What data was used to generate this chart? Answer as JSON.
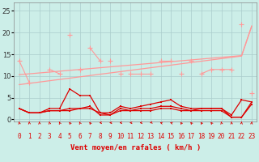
{
  "x": [
    0,
    1,
    2,
    3,
    4,
    5,
    6,
    7,
    8,
    9,
    10,
    11,
    12,
    13,
    14,
    15,
    16,
    17,
    18,
    19,
    20,
    21,
    22,
    23
  ],
  "background_color": "#cceee8",
  "grid_color": "#aacccc",
  "line_color_dark": "#dd0000",
  "line_color_light": "#ff9999",
  "xlabel": "Vent moyen/en rafales ( km/h )",
  "ylim": [
    -0.5,
    27
  ],
  "xlim": [
    -0.5,
    23.5
  ],
  "yticks": [
    0,
    5,
    10,
    15,
    20,
    25
  ],
  "series": {
    "upper_jagged1": [
      13.5,
      8.5,
      null,
      null,
      null,
      19.5,
      null,
      16.5,
      13.5,
      null,
      10.5,
      null,
      null,
      null,
      13.5,
      13.5,
      null,
      13.5,
      null,
      null,
      null,
      null,
      22.0,
      null
    ],
    "upper_jagged2": [
      null,
      null,
      null,
      11.5,
      10.5,
      null,
      11.5,
      null,
      null,
      13.5,
      null,
      10.5,
      10.5,
      10.5,
      null,
      null,
      10.5,
      null,
      10.5,
      11.5,
      11.5,
      11.5,
      null,
      6.0
    ],
    "trend1": [
      8.0,
      8.3,
      8.6,
      8.9,
      9.2,
      9.5,
      9.8,
      10.1,
      10.4,
      10.7,
      11.0,
      11.3,
      11.6,
      11.9,
      12.2,
      12.5,
      12.8,
      13.1,
      13.4,
      13.7,
      14.0,
      14.3,
      14.6,
      21.5
    ],
    "trend2": [
      10.3,
      10.5,
      10.7,
      10.9,
      11.1,
      11.3,
      11.5,
      11.7,
      11.9,
      12.1,
      12.3,
      12.5,
      12.7,
      12.9,
      13.1,
      13.3,
      13.5,
      13.7,
      13.9,
      14.1,
      14.3,
      14.5,
      14.7,
      21.5
    ],
    "lower1": [
      2.5,
      1.5,
      1.5,
      2.5,
      2.5,
      7.0,
      5.5,
      5.5,
      1.5,
      1.5,
      3.0,
      2.5,
      3.0,
      3.5,
      4.0,
      4.5,
      3.0,
      2.5,
      2.5,
      2.5,
      2.5,
      1.0,
      4.5,
      4.0
    ],
    "lower2": [
      2.5,
      1.5,
      1.5,
      2.0,
      2.0,
      2.5,
      2.5,
      3.0,
      1.0,
      1.0,
      2.5,
      2.0,
      2.5,
      2.5,
      3.0,
      3.0,
      2.5,
      2.0,
      2.5,
      2.5,
      2.5,
      0.5,
      0.5,
      4.0
    ],
    "lower3": [
      2.5,
      1.5,
      1.5,
      2.0,
      2.0,
      2.0,
      2.5,
      2.5,
      1.5,
      1.0,
      2.0,
      2.0,
      2.0,
      2.0,
      2.5,
      2.5,
      2.0,
      2.0,
      2.0,
      2.0,
      2.0,
      0.5,
      0.5,
      3.5
    ]
  },
  "wind_angles": [
    200,
    190,
    190,
    200,
    210,
    225,
    210,
    225,
    270,
    270,
    270,
    270,
    270,
    280,
    260,
    260,
    230,
    230,
    230,
    230,
    200,
    190,
    170,
    170
  ]
}
